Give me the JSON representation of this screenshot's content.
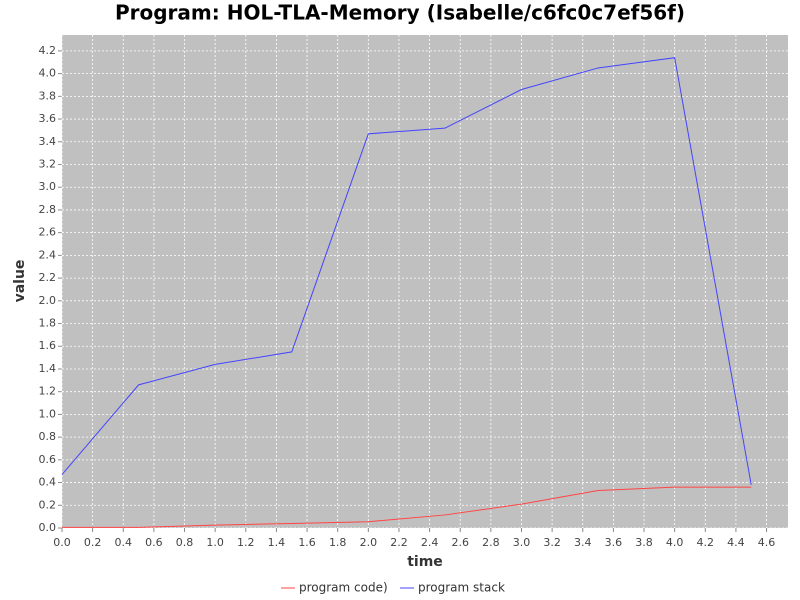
{
  "chart_data": {
    "type": "line",
    "title": "Program: HOL-TLA-Memory (Isabelle/c6fc0c7ef56f)",
    "x_label": "time",
    "y_label": "value",
    "x": [
      0,
      0.5,
      1,
      1.5,
      2,
      2.5,
      3,
      3.5,
      4,
      4.5
    ],
    "series": [
      {
        "name": "program code)",
        "color": "#ff4444",
        "values": [
          0.005,
          0.005,
          0.025,
          0.04,
          0.055,
          0.115,
          0.21,
          0.33,
          0.36,
          0.36
        ]
      },
      {
        "name": "program stack",
        "color": "#4444ff",
        "values": [
          0.47,
          1.26,
          1.44,
          1.55,
          3.47,
          3.52,
          3.86,
          4.05,
          4.14,
          0.38
        ]
      }
    ],
    "xlim": [
      0,
      4.74
    ],
    "ylim": [
      0,
      4.34
    ],
    "xticks": [
      {
        "value": 0,
        "label": "0.0"
      },
      0.2,
      0.4,
      0.6,
      0.8,
      {
        "value": 1,
        "label": "1.0"
      },
      1.2,
      1.4,
      1.6,
      1.8,
      {
        "value": 2,
        "label": "2.0"
      },
      2.2,
      2.4,
      2.6,
      2.8,
      {
        "value": 3,
        "label": "3.0"
      },
      3.2,
      3.4,
      3.6,
      3.8,
      {
        "value": 4,
        "label": "4.0"
      },
      4.2,
      4.4,
      4.6
    ],
    "yticks": [
      {
        "value": 0,
        "label": "0.0"
      },
      0.2,
      0.4,
      0.6,
      0.8,
      {
        "value": 1,
        "label": "1.0"
      },
      1.2,
      1.4,
      1.6,
      1.8,
      {
        "value": 2,
        "label": "2.0"
      },
      2.2,
      2.4,
      2.6,
      2.8,
      {
        "value": 3,
        "label": "3.0"
      },
      3.2,
      3.4,
      3.6,
      3.8,
      {
        "value": 4,
        "label": "4.0"
      },
      4.2
    ],
    "grid": true,
    "legend": "bottom"
  }
}
